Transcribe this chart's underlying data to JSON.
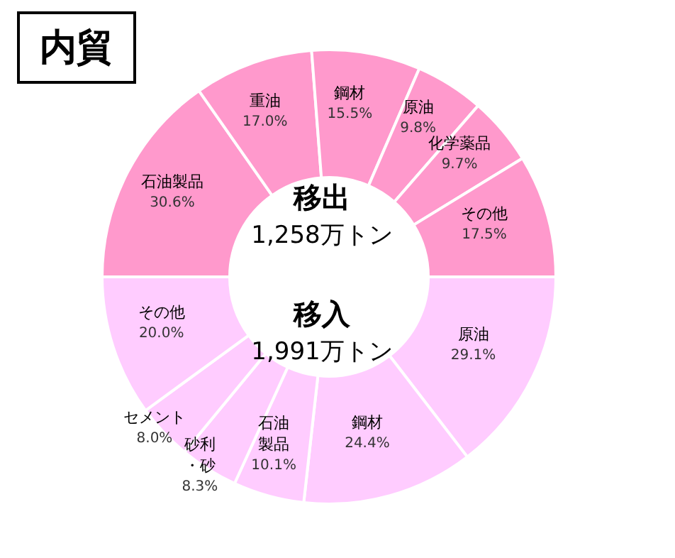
{
  "chart_data": [
    {
      "type": "donut",
      "annotations": [
        "内貿"
      ],
      "title": "移出",
      "subtitle": "1,258万トン",
      "categories": [
        "石油製品",
        "重油",
        "鋼材",
        "原油",
        "化学薬品",
        "その他"
      ],
      "values": [
        30.6,
        17.0,
        15.5,
        9.8,
        9.7,
        17.5
      ],
      "value_labels": [
        "30.6%",
        "17.0%",
        "15.5%",
        "9.8%",
        "9.7%",
        "17.5%"
      ],
      "colors": [
        "#ff99cc",
        "#ff99cc",
        "#ff99cc",
        "#ff99cc",
        "#ff99cc",
        "#ff99cc"
      ]
    },
    {
      "type": "donut",
      "title": "移入",
      "subtitle": "1,991万トン",
      "categories": [
        "原油",
        "鋼材",
        "石油製品",
        "砂利・砂",
        "セメント",
        "その他"
      ],
      "values": [
        29.1,
        24.4,
        10.1,
        8.3,
        8.0,
        20.0
      ],
      "value_labels": [
        "29.1%",
        "24.4%",
        "10.1%",
        "8.3%",
        "8.0%",
        "20.0%"
      ],
      "colors": [
        "#ffccff",
        "#ffccff",
        "#ffccff",
        "#ffccff",
        "#ffccff",
        "#ffccff"
      ]
    }
  ]
}
